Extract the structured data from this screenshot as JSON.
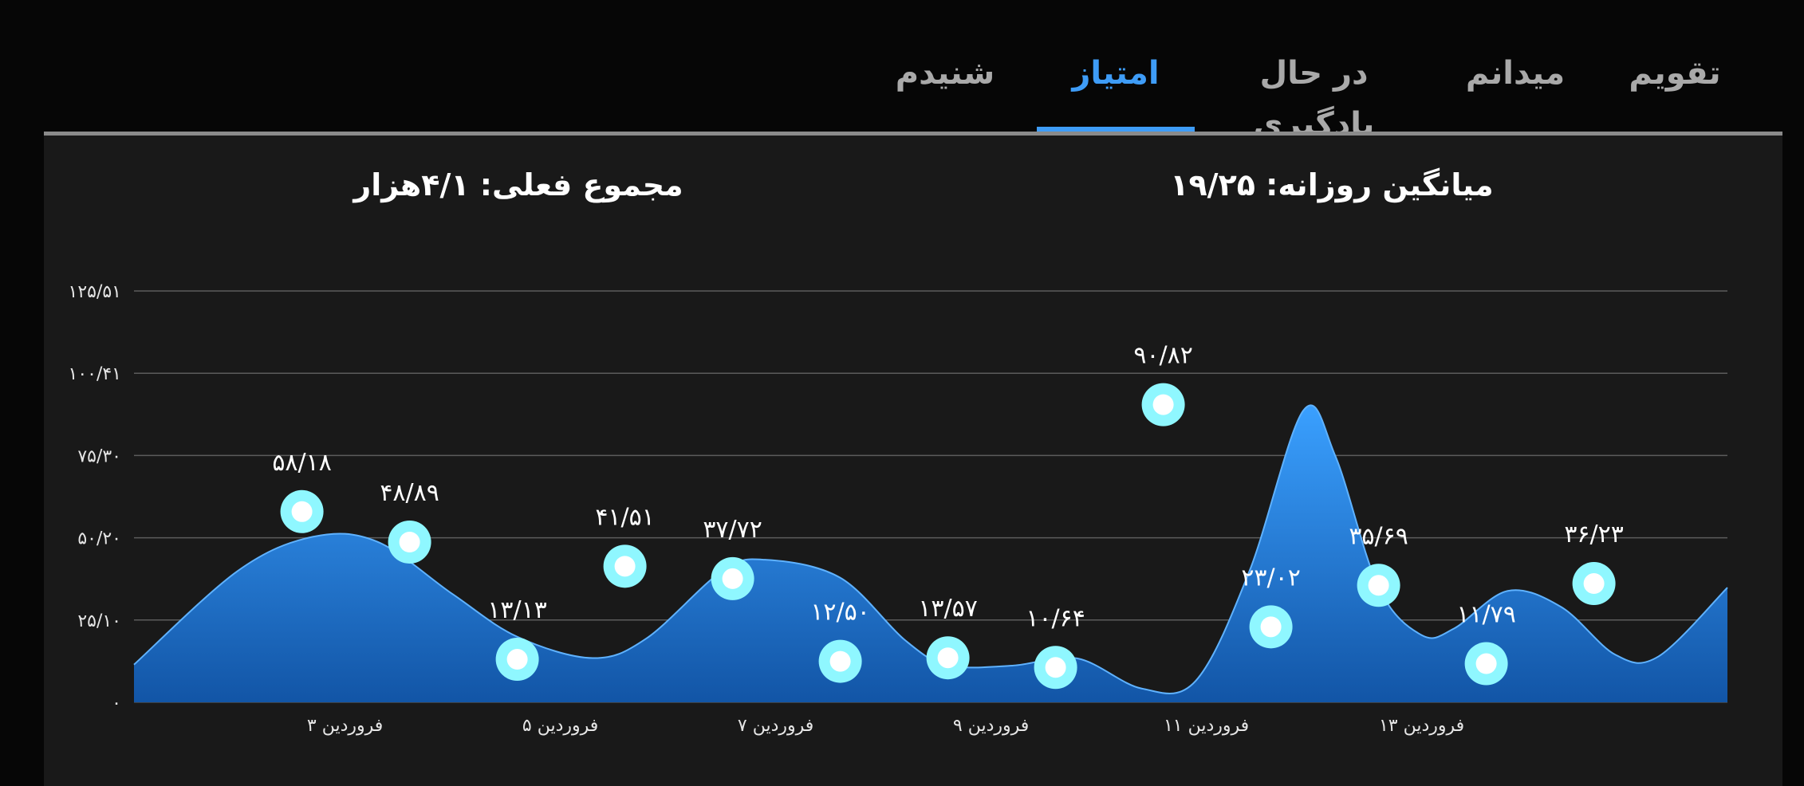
{
  "tabs": [
    {
      "label": "تقویم",
      "active": false
    },
    {
      "label": "میدانم",
      "active": false
    },
    {
      "label": "در حال یادگیری",
      "active": false
    },
    {
      "label": "امتیاز",
      "active": true
    },
    {
      "label": "شنیدم",
      "active": false
    }
  ],
  "stats": {
    "daily_average": "میانگین روزانه: ۱۹/۲۵",
    "current_total": "مجموع فعلی: ۴/۱هزار"
  },
  "colors": {
    "accent": "#3e9cf7",
    "area_top": "#3aa0ff",
    "area_bottom": "#1255a6",
    "marker": "#8ff7ff"
  },
  "chart_data": {
    "type": "area",
    "title": "",
    "xlabel": "",
    "ylabel": "",
    "ylim": [
      0,
      125.51
    ],
    "y_ticks": [
      0,
      25.1,
      50.2,
      75.3,
      100.41,
      125.51
    ],
    "y_tick_labels": [
      "۰",
      "۲۵/۱۰",
      "۵۰/۲۰",
      "۷۵/۳۰",
      "۱۰۰/۴۱",
      "۱۲۵/۵۱"
    ],
    "x_tick_labels": [
      {
        "x": 3,
        "label": "۳ فروردین"
      },
      {
        "x": 5,
        "label": "۵ فروردین"
      },
      {
        "x": 7,
        "label": "۷ فروردین"
      },
      {
        "x": 9,
        "label": "۹ فروردین"
      },
      {
        "x": 11,
        "label": "۱۱ فروردین"
      },
      {
        "x": 13,
        "label": "۱۳ فروردین"
      }
    ],
    "x_range": [
      1.04,
      15.84
    ],
    "grid": true,
    "smooth": true,
    "series": [
      {
        "values": [
          {
            "x": 1.04,
            "y": 11.5
          },
          {
            "x": 2.0,
            "y": 40
          },
          {
            "x": 2.7,
            "y": 50.5
          },
          {
            "x": 3.3,
            "y": 49
          },
          {
            "x": 4.0,
            "y": 33
          },
          {
            "x": 4.6,
            "y": 20
          },
          {
            "x": 5.3,
            "y": 13.5
          },
          {
            "x": 5.8,
            "y": 19.5
          },
          {
            "x": 6.5,
            "y": 40
          },
          {
            "x": 6.9,
            "y": 43.5
          },
          {
            "x": 7.6,
            "y": 38
          },
          {
            "x": 8.2,
            "y": 19
          },
          {
            "x": 8.6,
            "y": 11.3
          },
          {
            "x": 9.2,
            "y": 11.2
          },
          {
            "x": 9.8,
            "y": 13.4
          },
          {
            "x": 10.4,
            "y": 4.2
          },
          {
            "x": 10.9,
            "y": 6.5
          },
          {
            "x": 11.4,
            "y": 40
          },
          {
            "x": 11.9,
            "y": 89
          },
          {
            "x": 12.2,
            "y": 75
          },
          {
            "x": 12.6,
            "y": 35
          },
          {
            "x": 13.0,
            "y": 20.5
          },
          {
            "x": 13.3,
            "y": 22.5
          },
          {
            "x": 13.8,
            "y": 34
          },
          {
            "x": 14.3,
            "y": 29
          },
          {
            "x": 14.8,
            "y": 14.5
          },
          {
            "x": 15.2,
            "y": 14
          },
          {
            "x": 15.84,
            "y": 35
          }
        ]
      }
    ],
    "points": [
      {
        "x": 2.6,
        "y": 58.18,
        "label": "۵۸/۱۸"
      },
      {
        "x": 3.6,
        "y": 48.89,
        "label": "۴۸/۸۹"
      },
      {
        "x": 4.6,
        "y": 13.13,
        "label": "۱۳/۱۳"
      },
      {
        "x": 5.6,
        "y": 41.51,
        "label": "۴۱/۵۱"
      },
      {
        "x": 6.6,
        "y": 37.72,
        "label": "۳۷/۷۲"
      },
      {
        "x": 7.6,
        "y": 12.5,
        "label": "۱۲/۵۰"
      },
      {
        "x": 8.6,
        "y": 13.57,
        "label": "۱۳/۵۷"
      },
      {
        "x": 9.6,
        "y": 10.64,
        "label": "۱۰/۶۴"
      },
      {
        "x": 10.6,
        "y": 90.82,
        "label": "۹۰/۸۲"
      },
      {
        "x": 11.6,
        "y": 23.02,
        "label": "۲۳/۰۲"
      },
      {
        "x": 12.6,
        "y": 35.69,
        "label": "۳۵/۶۹"
      },
      {
        "x": 13.6,
        "y": 11.79,
        "label": "۱۱/۷۹"
      },
      {
        "x": 14.6,
        "y": 36.23,
        "label": "۳۶/۲۳"
      }
    ]
  }
}
